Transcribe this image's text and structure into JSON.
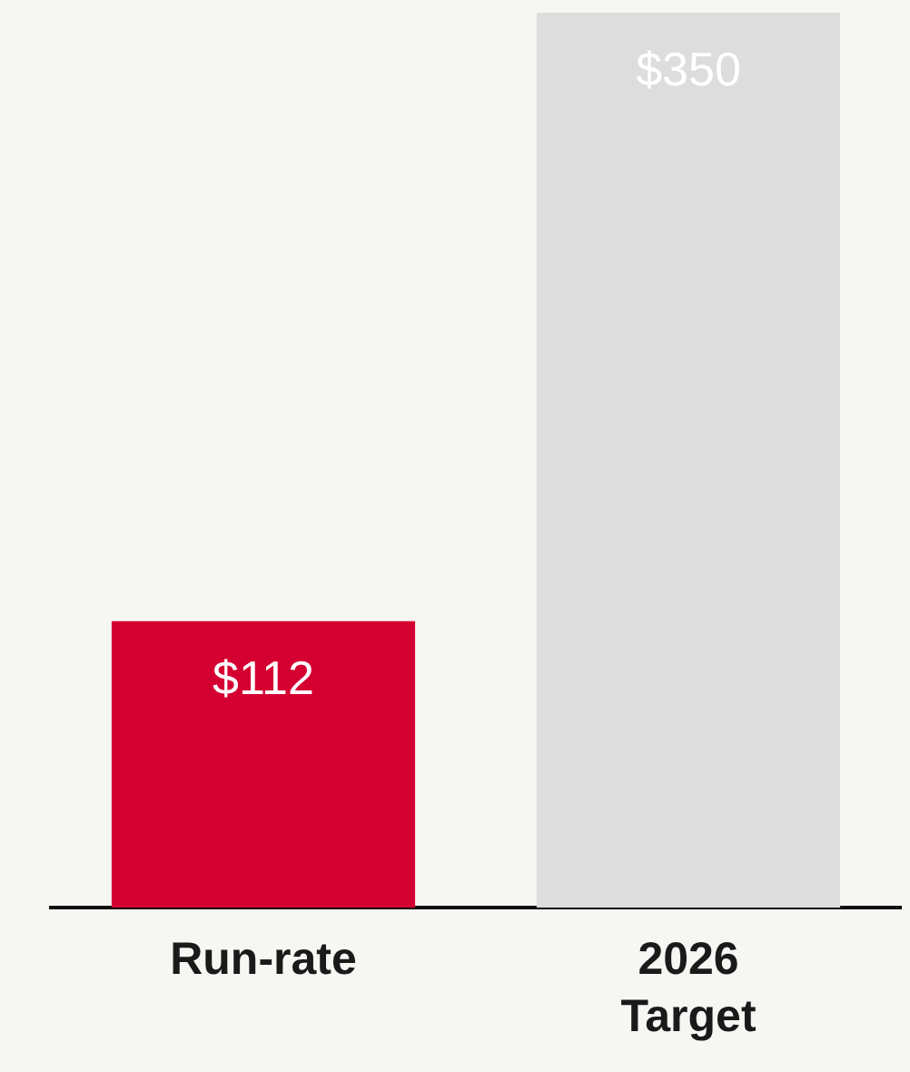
{
  "chart_data": {
    "type": "bar",
    "categories": [
      "Run-rate",
      "2026 Target"
    ],
    "values": [
      112,
      350
    ],
    "colors": [
      "#d50032",
      "#dcdddc"
    ],
    "value_labels": [
      "$112",
      "$350"
    ],
    "grid": false,
    "legend": false,
    "tick_labels": "x"
  }
}
